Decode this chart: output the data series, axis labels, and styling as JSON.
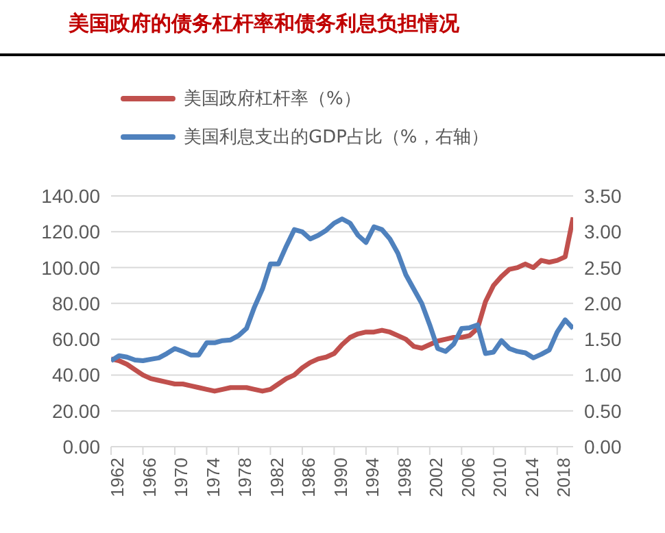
{
  "chart_data": {
    "type": "line",
    "title": "美国政府的债务杠杆率和债务利息负担情况",
    "x": [
      1962,
      1963,
      1964,
      1965,
      1966,
      1967,
      1968,
      1969,
      1970,
      1971,
      1972,
      1973,
      1974,
      1975,
      1976,
      1977,
      1978,
      1979,
      1980,
      1981,
      1982,
      1983,
      1984,
      1985,
      1986,
      1987,
      1988,
      1989,
      1990,
      1991,
      1992,
      1993,
      1994,
      1995,
      1996,
      1997,
      1998,
      1999,
      2000,
      2001,
      2002,
      2003,
      2004,
      2005,
      2006,
      2007,
      2008,
      2009,
      2010,
      2011,
      2012,
      2013,
      2014,
      2015,
      2016,
      2017,
      2018,
      2019,
      2020
    ],
    "series": [
      {
        "name": "美国政府杠杆率（%）",
        "color": "#c0504d",
        "values": [
          49,
          48,
          46,
          43,
          40,
          38,
          37,
          36,
          35,
          35,
          34,
          33,
          32,
          31,
          32,
          33,
          33,
          33,
          32,
          31,
          32,
          35,
          38,
          40,
          44,
          47,
          49,
          50,
          52,
          57,
          61,
          63,
          64,
          64,
          65,
          64,
          62,
          60,
          56,
          55,
          57,
          59,
          60,
          61,
          61,
          62,
          66,
          81,
          90,
          95,
          99,
          100,
          102,
          100,
          104,
          103,
          104,
          106,
          128
        ]
      },
      {
        "name": "美国利息支出的GDP占比（%，右轴）",
        "color": "#4f81bd",
        "axis": "y2",
        "values": [
          1.2,
          1.27,
          1.25,
          1.21,
          1.2,
          1.22,
          1.24,
          1.3,
          1.37,
          1.33,
          1.28,
          1.28,
          1.45,
          1.45,
          1.48,
          1.49,
          1.55,
          1.65,
          1.95,
          2.2,
          2.55,
          2.55,
          2.8,
          3.03,
          3.0,
          2.9,
          2.95,
          3.02,
          3.12,
          3.18,
          3.12,
          2.95,
          2.85,
          3.07,
          3.03,
          2.9,
          2.7,
          2.4,
          2.2,
          2.0,
          1.7,
          1.37,
          1.33,
          1.43,
          1.65,
          1.66,
          1.7,
          1.3,
          1.32,
          1.48,
          1.37,
          1.33,
          1.31,
          1.24,
          1.29,
          1.35,
          1.6,
          1.77,
          1.65
        ]
      }
    ],
    "xlim": [
      1962,
      2020
    ],
    "xticks": [
      1962,
      1966,
      1970,
      1974,
      1978,
      1982,
      1986,
      1990,
      1994,
      1998,
      2002,
      2006,
      2010,
      2014,
      2018
    ],
    "ylim": [
      0,
      140
    ],
    "yticks": [
      {
        "value": 0,
        "label": "0.00"
      },
      {
        "value": 20,
        "label": "20.00"
      },
      {
        "value": 40,
        "label": "40.00"
      },
      {
        "value": 60,
        "label": "60.00"
      },
      {
        "value": 80,
        "label": "80.00"
      },
      {
        "value": 100,
        "label": "100.00"
      },
      {
        "value": 120,
        "label": "120.00"
      },
      {
        "value": 140,
        "label": "140.00"
      }
    ],
    "y2lim": [
      0,
      3.5
    ],
    "y2ticks": [
      {
        "value": 0,
        "label": "0.00"
      },
      {
        "value": 0.5,
        "label": "0.50"
      },
      {
        "value": 1,
        "label": "1.00"
      },
      {
        "value": 1.5,
        "label": "1.50"
      },
      {
        "value": 2,
        "label": "2.00"
      },
      {
        "value": 2.5,
        "label": "2.50"
      },
      {
        "value": 3,
        "label": "3.00"
      },
      {
        "value": 3.5,
        "label": "3.50"
      }
    ],
    "grid": "y",
    "legend": "top left",
    "marker": "none",
    "line_style": "solid"
  }
}
